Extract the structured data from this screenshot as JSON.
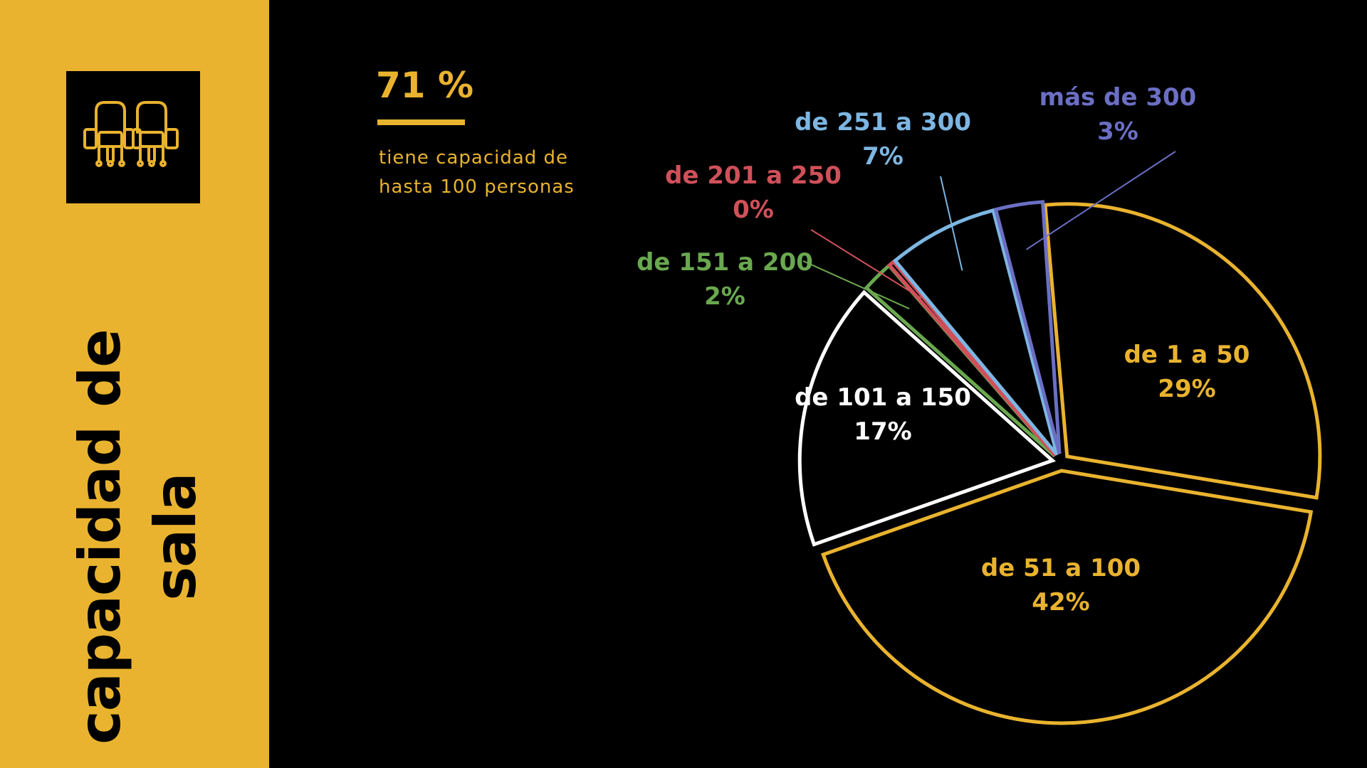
{
  "sidebar": {
    "title": "capacidad de sala",
    "icon": "cinema-seats-icon"
  },
  "highlight": {
    "value": "71 %",
    "description": "tiene capacidad de hasta 100 personas"
  },
  "colors": {
    "accent": "#E9B32F",
    "background": "#000000"
  },
  "chart_data": {
    "type": "pie",
    "title": "",
    "style": "exploded outline slices, labels with leader lines",
    "slices": [
      {
        "label": "de 1 a 50",
        "value": 29,
        "display": "29%",
        "color": "#E9B32F"
      },
      {
        "label": "de 51 a 100",
        "value": 42,
        "display": "42%",
        "color": "#E9B32F"
      },
      {
        "label": "de 101 a 150",
        "value": 17,
        "display": "17%",
        "color": "#FFFFFF"
      },
      {
        "label": "de 151 a 200",
        "value": 2,
        "display": "2%",
        "color": "#6AA84F"
      },
      {
        "label": "de 201 a 250",
        "value": 0,
        "display": "0%",
        "color": "#D0505A"
      },
      {
        "label": "de 251 a 300",
        "value": 7,
        "display": "7%",
        "color": "#7DB6E2"
      },
      {
        "label": "más de 300",
        "value": 3,
        "display": "3%",
        "color": "#6B6FC4"
      }
    ]
  }
}
